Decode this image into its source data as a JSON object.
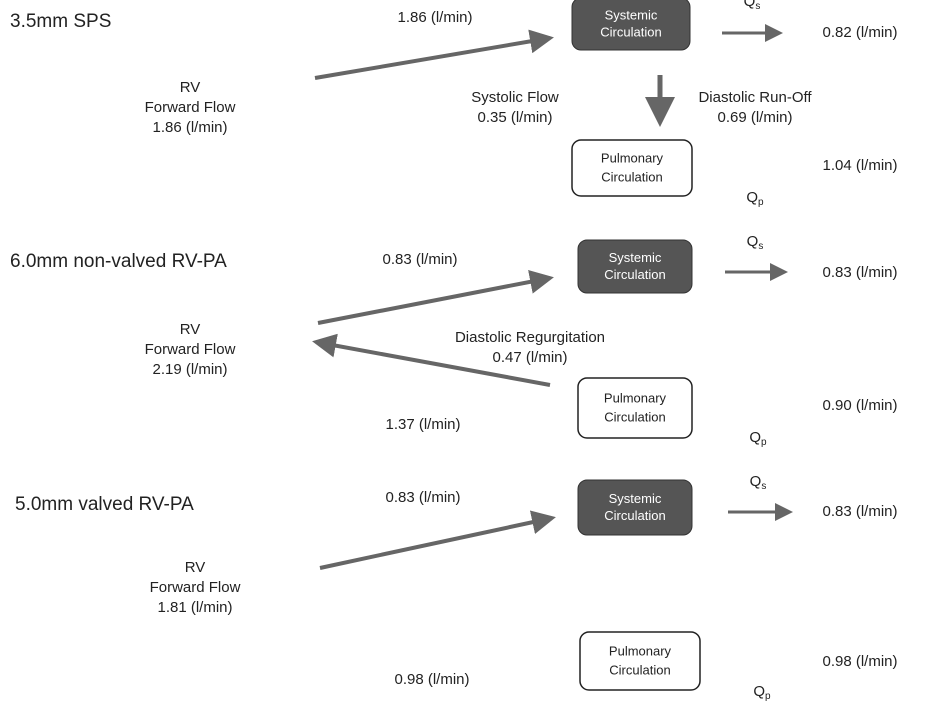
{
  "panels": [
    {
      "title": "3.5mm SPS",
      "rv": [
        "RV",
        "Forward Flow",
        "1.86 (l/min)"
      ],
      "top_flow": "1.86 (l/min)",
      "systemic": [
        "Systemic",
        "Circulation"
      ],
      "pulmonary": [
        "Pulmonary",
        "Circulation"
      ],
      "qs": {
        "main": "Q",
        "sub": "s"
      },
      "qs_flow": "0.82 (l/min)",
      "qp": {
        "main": "Q",
        "sub": "p"
      },
      "qp_flow": "1.04 (l/min)",
      "systolic": [
        "Systolic Flow",
        "0.35 (l/min)"
      ],
      "diastolic": [
        "Diastolic Run-Off",
        "0.69 (l/min)"
      ]
    },
    {
      "title": "6.0mm non-valved RV-PA",
      "rv": [
        "RV",
        "Forward Flow",
        "2.19 (l/min)"
      ],
      "top_flow": "0.83 (l/min)",
      "systemic": [
        "Systemic",
        "Circulation"
      ],
      "pulmonary": [
        "Pulmonary",
        "Circulation"
      ],
      "qs": {
        "main": "Q",
        "sub": "s"
      },
      "qs_flow": "0.83 (l/min)",
      "qp": {
        "main": "Q",
        "sub": "p"
      },
      "qp_flow": "0.90 (l/min)",
      "regurgitation": [
        "Diastolic Regurgitation",
        "0.47 (l/min)"
      ],
      "bottom_flow": "1.37 (l/min)"
    },
    {
      "title": "5.0mm valved RV-PA",
      "rv": [
        "RV",
        "Forward Flow",
        "1.81 (l/min)"
      ],
      "top_flow": "0.83 (l/min)",
      "systemic": [
        "Systemic",
        "Circulation"
      ],
      "pulmonary": [
        "Pulmonary",
        "Circulation"
      ],
      "qs": {
        "main": "Q",
        "sub": "s"
      },
      "qs_flow": "0.83 (l/min)",
      "qp": {
        "main": "Q",
        "sub": "p"
      },
      "qp_flow": "0.98 (l/min)",
      "bottom_flow": "0.98 (l/min)"
    }
  ]
}
